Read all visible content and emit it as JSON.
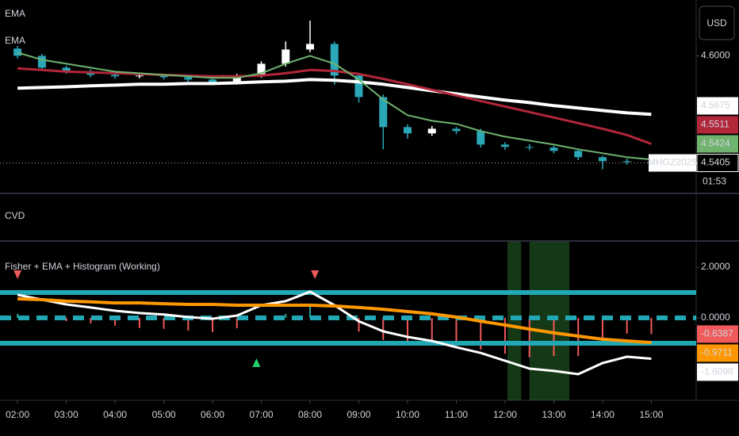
{
  "chart_data": [
    {
      "type": "candlestick",
      "currency": "USD",
      "symbol": "MHGZ2025",
      "countdown": "01:53",
      "x": [
        2,
        2.5,
        3,
        3.5,
        4,
        4.5,
        5,
        5.5,
        6,
        6.5,
        7,
        7.5,
        8,
        8.5,
        9,
        9.5,
        10,
        10.5,
        11,
        11.5,
        12,
        12.5,
        13,
        13.5,
        14,
        14.5,
        15
      ],
      "open": [
        4.604,
        4.6,
        4.5934,
        4.5912,
        4.5894,
        4.5886,
        4.589,
        4.5881,
        4.5868,
        4.585,
        4.589,
        4.5956,
        4.6035,
        4.6066,
        4.589,
        4.5771,
        4.5604,
        4.5569,
        4.5595,
        4.5582,
        4.5507,
        4.5494,
        4.549,
        4.5472,
        4.5437,
        4.5415,
        4.541
      ],
      "high": [
        4.6055,
        4.601,
        4.5945,
        4.5925,
        4.5905,
        4.5902,
        4.59,
        4.589,
        4.5875,
        4.59,
        4.597,
        4.608,
        4.6195,
        4.608,
        4.59,
        4.5785,
        4.562,
        4.561,
        4.5605,
        4.5595,
        4.552,
        4.551,
        4.55,
        4.548,
        4.5445,
        4.543,
        4.5425
      ],
      "low": [
        4.5985,
        4.592,
        4.59,
        4.588,
        4.5872,
        4.5875,
        4.5868,
        4.5855,
        4.5838,
        4.584,
        4.5878,
        4.594,
        4.602,
        4.584,
        4.574,
        4.548,
        4.554,
        4.5555,
        4.5565,
        4.549,
        4.5478,
        4.5475,
        4.5458,
        4.542,
        4.537,
        4.5395,
        4.5392
      ],
      "close": [
        4.6,
        4.5934,
        4.5912,
        4.5894,
        4.5886,
        4.589,
        4.5881,
        4.5868,
        4.585,
        4.589,
        4.5956,
        4.6035,
        4.6066,
        4.589,
        4.5771,
        4.5604,
        4.5569,
        4.5595,
        4.5582,
        4.5507,
        4.5494,
        4.549,
        4.5472,
        4.5437,
        4.5415,
        4.541,
        4.5405
      ],
      "up_color": "#ffffff",
      "down_color": "#2aa8b8",
      "series": [
        {
          "name": "EMA",
          "color": "#ffffff",
          "values": [
            4.582,
            4.5824,
            4.5828,
            4.5833,
            4.5837,
            4.5842,
            4.5842,
            4.5846,
            4.5846,
            4.585,
            4.5855,
            4.5859,
            4.5868,
            4.5864,
            4.5855,
            4.5842,
            4.5824,
            4.5806,
            4.5789,
            4.5771,
            4.5754,
            4.574,
            4.5723,
            4.571,
            4.5696,
            4.5683,
            4.5675
          ]
        },
        {
          "name": "EMA",
          "color": "#b2263a",
          "values": [
            4.593,
            4.5921,
            4.5912,
            4.5908,
            4.5903,
            4.5899,
            4.5894,
            4.589,
            4.5886,
            4.5886,
            4.589,
            4.5903,
            4.5921,
            4.5916,
            4.5899,
            4.5872,
            4.5842,
            4.5811,
            4.578,
            4.5749,
            4.5718,
            4.5688,
            4.5657,
            4.5626,
            4.5595,
            4.556,
            4.5511
          ]
        },
        {
          "color": "#6fb36f",
          "values": [
            4.6018,
            4.5978,
            4.5956,
            4.5934,
            4.5912,
            4.5903,
            4.5894,
            4.5886,
            4.5877,
            4.5877,
            4.5903,
            4.5956,
            4.6,
            4.5956,
            4.5868,
            4.5758,
            4.567,
            4.5639,
            4.5622,
            4.5582,
            4.5551,
            4.5529,
            4.5507,
            4.5481,
            4.5459,
            4.5437,
            4.5424
          ]
        }
      ],
      "xlim": [
        1.64,
        15.92
      ],
      "ylim": [
        4.524,
        4.631
      ],
      "yticks": [
        {
          "value": 4.6,
          "label": "4.6000"
        }
      ]
    },
    {
      "type": "empty",
      "title": "CVD"
    },
    {
      "type": "line",
      "title": "Fisher + EMA + Histogram (Working)",
      "x": [
        2,
        2.5,
        3,
        3.5,
        4,
        4.5,
        5,
        5.5,
        6,
        6.5,
        7,
        7.5,
        8,
        8.5,
        9,
        9.5,
        10,
        10.5,
        11,
        11.5,
        12,
        12.5,
        13,
        13.5,
        14,
        14.5,
        15
      ],
      "series": [
        {
          "color": "#ffffff",
          "values": [
            0.91,
            0.72,
            0.53,
            0.41,
            0.28,
            0.19,
            0.13,
            0.03,
            -0.03,
            0.09,
            0.5,
            0.66,
            1.03,
            0.5,
            -0.13,
            -0.53,
            -0.75,
            -0.91,
            -1.16,
            -1.38,
            -1.69,
            -2.0,
            -2.09,
            -2.22,
            -1.78,
            -1.53,
            -1.6098
          ]
        },
        {
          "color": "#ff9800",
          "values": [
            0.75,
            0.72,
            0.66,
            0.63,
            0.59,
            0.59,
            0.56,
            0.53,
            0.53,
            0.5,
            0.5,
            0.5,
            0.5,
            0.47,
            0.41,
            0.34,
            0.25,
            0.16,
            0.03,
            -0.13,
            -0.28,
            -0.44,
            -0.59,
            -0.72,
            -0.84,
            -0.91,
            -0.9711
          ]
        },
        {
          "type": "histogram",
          "up_color": "#26a69a",
          "down_color": "#f05a5a",
          "values": [
            0.16,
            0,
            -0.13,
            -0.22,
            -0.31,
            -0.4,
            -0.43,
            -0.5,
            -0.56,
            -0.41,
            0,
            0.16,
            0.53,
            0.03,
            -0.54,
            -0.87,
            -1.0,
            -1.07,
            -1.19,
            -1.25,
            -1.41,
            -1.56,
            -1.5,
            -1.5,
            -0.94,
            -0.62,
            -0.6387
          ]
        }
      ],
      "levels": [
        1,
        0,
        -1
      ],
      "level_styles": [
        "solid",
        "dashed",
        "solid"
      ],
      "level_color": "#22a7b5",
      "shaded": [
        [
          12.05,
          12.33
        ],
        [
          12.5,
          13.32
        ]
      ],
      "shade_color": "#2e7d32",
      "sell_signals": [
        2.0,
        8.1
      ],
      "buy_signals": [
        6.9
      ],
      "xlim": [
        1.64,
        15.92
      ],
      "ylim": [
        -3.25,
        3.0
      ],
      "yticks": [
        {
          "value": 2,
          "label": "2.0000"
        },
        {
          "value": 0,
          "label": "0.0000"
        }
      ],
      "xticks": [
        {
          "value": 2,
          "label": "02:00"
        },
        {
          "value": 3,
          "label": "03:00"
        },
        {
          "value": 4,
          "label": "04:00"
        },
        {
          "value": 5,
          "label": "05:00"
        },
        {
          "value": 6,
          "label": "06:00"
        },
        {
          "value": 7,
          "label": "07:00"
        },
        {
          "value": 8,
          "label": "08:00"
        },
        {
          "value": 9,
          "label": "09:00"
        },
        {
          "value": 10,
          "label": "10:00"
        },
        {
          "value": 11,
          "label": "11:00"
        },
        {
          "value": 12,
          "label": "12:00"
        },
        {
          "value": 13,
          "label": "13:00"
        },
        {
          "value": 14,
          "label": "14:00"
        },
        {
          "value": 15,
          "label": "15:00"
        }
      ]
    }
  ]
}
